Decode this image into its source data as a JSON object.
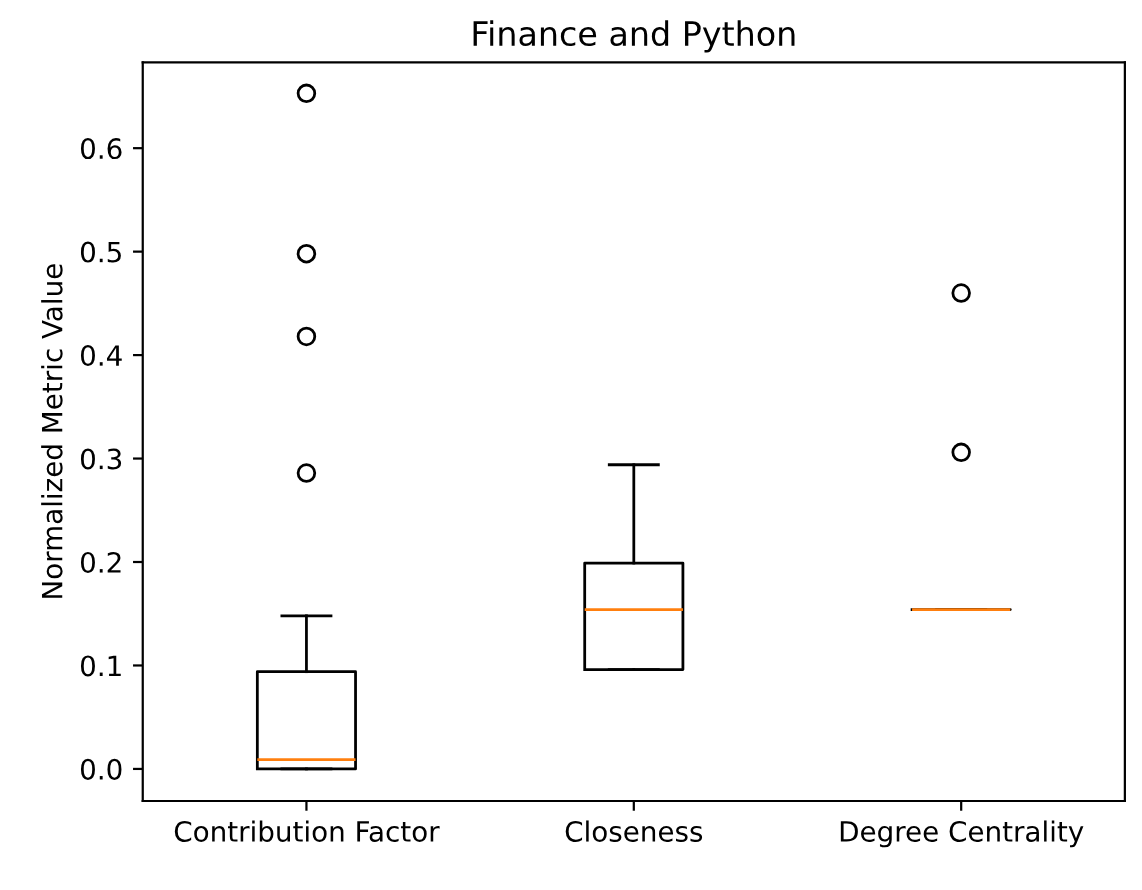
{
  "chart_data": {
    "type": "box",
    "title": "Finance and Python",
    "ylabel": "Normalized Metric Value",
    "categories": [
      "Contribution Factor",
      "Closeness",
      "Degree Centrality"
    ],
    "boxes": [
      {
        "low": 0.0,
        "q1": 0.0,
        "median": 0.009,
        "q3": 0.094,
        "high": 0.148,
        "outliers": [
          0.286,
          0.418,
          0.498,
          0.653
        ]
      },
      {
        "low": 0.096,
        "q1": 0.096,
        "median": 0.154,
        "q3": 0.199,
        "high": 0.294
      },
      {
        "low": 0.154,
        "q1": 0.154,
        "median": 0.154,
        "q3": 0.154,
        "high": 0.154,
        "outliers": [
          0.306,
          0.46
        ]
      }
    ],
    "ylim": [
      -0.031,
      0.683
    ],
    "yticks": [
      {
        "value": 0,
        "label": "0.0"
      },
      0.1,
      0.2,
      0.3,
      0.4,
      0.5,
      0.6
    ],
    "grid": false
  }
}
